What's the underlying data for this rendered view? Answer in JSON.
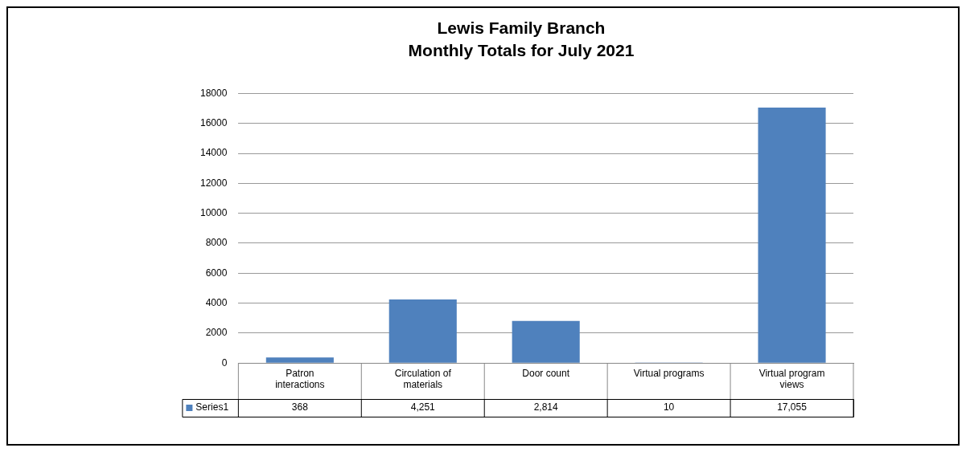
{
  "chart_data": {
    "type": "bar",
    "title": "Lewis Family Branch",
    "subtitle": "Monthly Totals for July 2021",
    "categories": [
      "Patron interactions",
      "Circulation of materials",
      "Door count",
      "Virtual programs",
      "Virtual program views"
    ],
    "series": [
      {
        "name": "Series1",
        "color": "#4f81bd",
        "values": [
          368,
          4251,
          2814,
          10,
          17055
        ],
        "value_labels": [
          "368",
          "4,251",
          "2,814",
          "10",
          "17,055"
        ]
      }
    ],
    "ylim": [
      0,
      18000
    ],
    "yticks": [
      0,
      2000,
      4000,
      6000,
      8000,
      10000,
      12000,
      14000,
      16000,
      18000
    ],
    "grid": "y"
  }
}
